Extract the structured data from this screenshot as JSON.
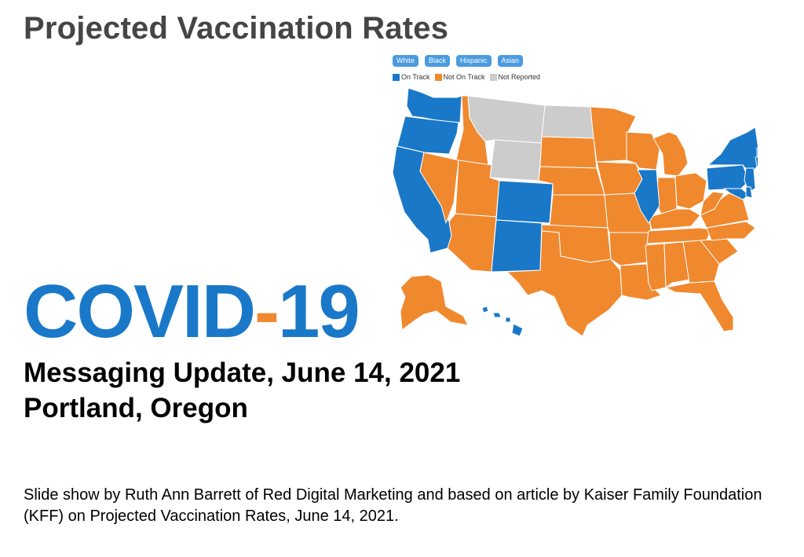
{
  "slide": {
    "title": "Projected Vaccination Rates",
    "covid_part1": "COVID",
    "covid_dash": "-",
    "covid_part2": "19",
    "subtitle_line1": "Messaging Update, June 14, 2021",
    "subtitle_line2": "Portland, Oregon",
    "credit": "Slide show by Ruth Ann Barrett of Red Digital Marketing and based on article by Kaiser Family Foundation (KFF) on Projected Vaccination Rates, June 14, 2021."
  },
  "map": {
    "filters": [
      "White",
      "Black",
      "Hispanic",
      "Asian"
    ],
    "legend": [
      {
        "label": "On Track",
        "color": "#1a78c8"
      },
      {
        "label": "Not On Track",
        "color": "#f0882e"
      },
      {
        "label": "Not Reported",
        "color": "#cccccc"
      }
    ],
    "colors": {
      "on_track": "#1a78c8",
      "not_on_track": "#f0882e",
      "not_reported": "#cccccc"
    }
  }
}
